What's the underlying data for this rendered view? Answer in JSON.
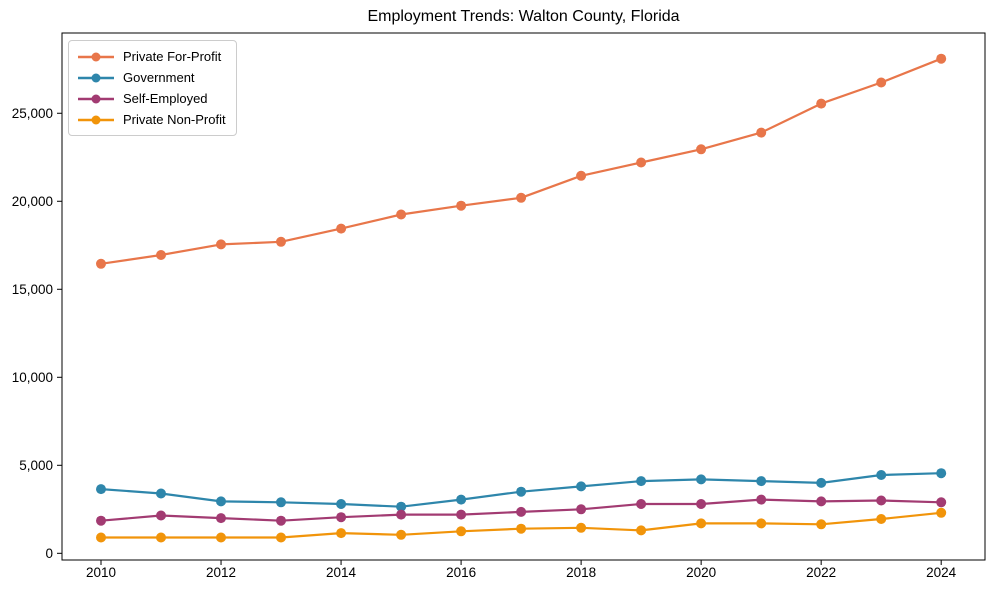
{
  "title": "Employment Trends: Walton County, Florida",
  "chart_data": {
    "type": "line",
    "title": "Employment Trends: Walton County, Florida",
    "xlabel": "",
    "ylabel": "",
    "grid": false,
    "legend_position": "upper left",
    "x": [
      2010,
      2011,
      2012,
      2013,
      2014,
      2015,
      2016,
      2017,
      2018,
      2019,
      2020,
      2021,
      2022,
      2023,
      2024
    ],
    "series": [
      {
        "name": "Private For-Profit",
        "color": "#e8764a",
        "values": [
          16450,
          16950,
          17550,
          17700,
          18450,
          19250,
          19750,
          20200,
          21450,
          22200,
          22950,
          23900,
          25550,
          26750,
          28100
        ]
      },
      {
        "name": "Government",
        "color": "#2e86ab",
        "values": [
          3650,
          3400,
          2950,
          2900,
          2800,
          2650,
          3050,
          3500,
          3800,
          4100,
          4200,
          4100,
          4000,
          4450,
          4550
        ]
      },
      {
        "name": "Self-Employed",
        "color": "#a23b72",
        "values": [
          1850,
          2150,
          2000,
          1850,
          2050,
          2200,
          2200,
          2350,
          2500,
          2800,
          2800,
          3050,
          2950,
          3000,
          2900
        ]
      },
      {
        "name": "Private Non-Profit",
        "color": "#f1940a",
        "values": [
          900,
          900,
          900,
          900,
          1150,
          1050,
          1250,
          1400,
          1450,
          1300,
          1700,
          1700,
          1650,
          1950,
          2300
        ]
      }
    ],
    "xticks": [
      2010,
      2012,
      2014,
      2016,
      2018,
      2020,
      2022,
      2024
    ],
    "xtick_labels": [
      "2010",
      "2012",
      "2014",
      "2016",
      "2018",
      "2020",
      "2022",
      "2024"
    ],
    "yticks": [
      0,
      5000,
      10000,
      15000,
      20000,
      25000
    ],
    "ytick_labels": [
      "0",
      "5,000",
      "10,000",
      "15,000",
      "20,000",
      "25,000"
    ],
    "xlim": [
      2009.35,
      2024.73
    ],
    "ylim": [
      -380,
      29560
    ]
  }
}
